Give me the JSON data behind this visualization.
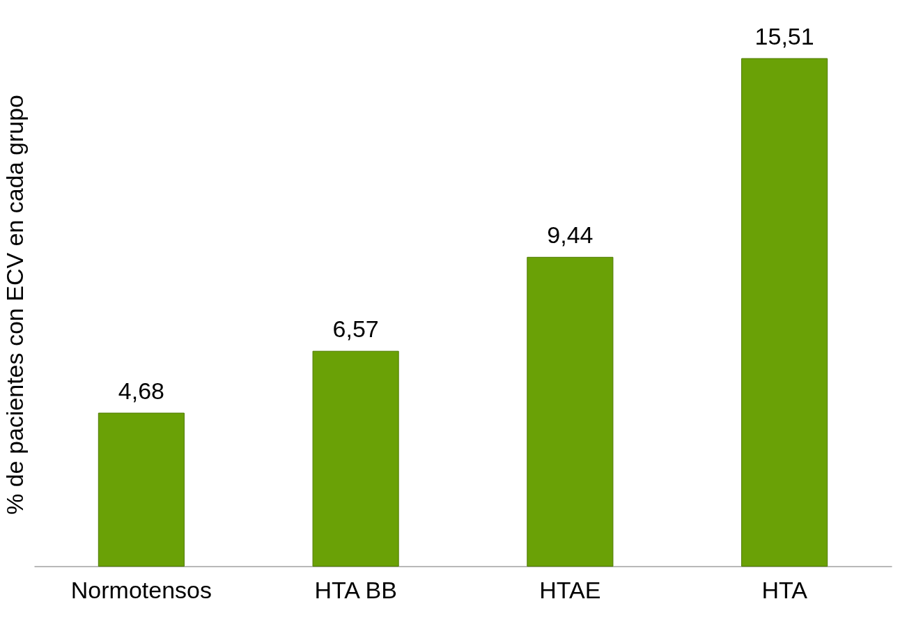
{
  "chart_data": {
    "type": "bar",
    "ylabel": "% de pacientes con ECV en cada grupo",
    "categories": [
      "Normotensos",
      "HTA BB",
      "HTAE",
      "HTA"
    ],
    "series": [
      {
        "color": "#6aa106",
        "values": [
          4.68,
          6.57,
          9.44,
          15.51
        ],
        "value_labels": [
          "4,68",
          "6,57",
          "9,44",
          "15,51"
        ]
      }
    ],
    "grid": false,
    "tick_labels": "x"
  }
}
